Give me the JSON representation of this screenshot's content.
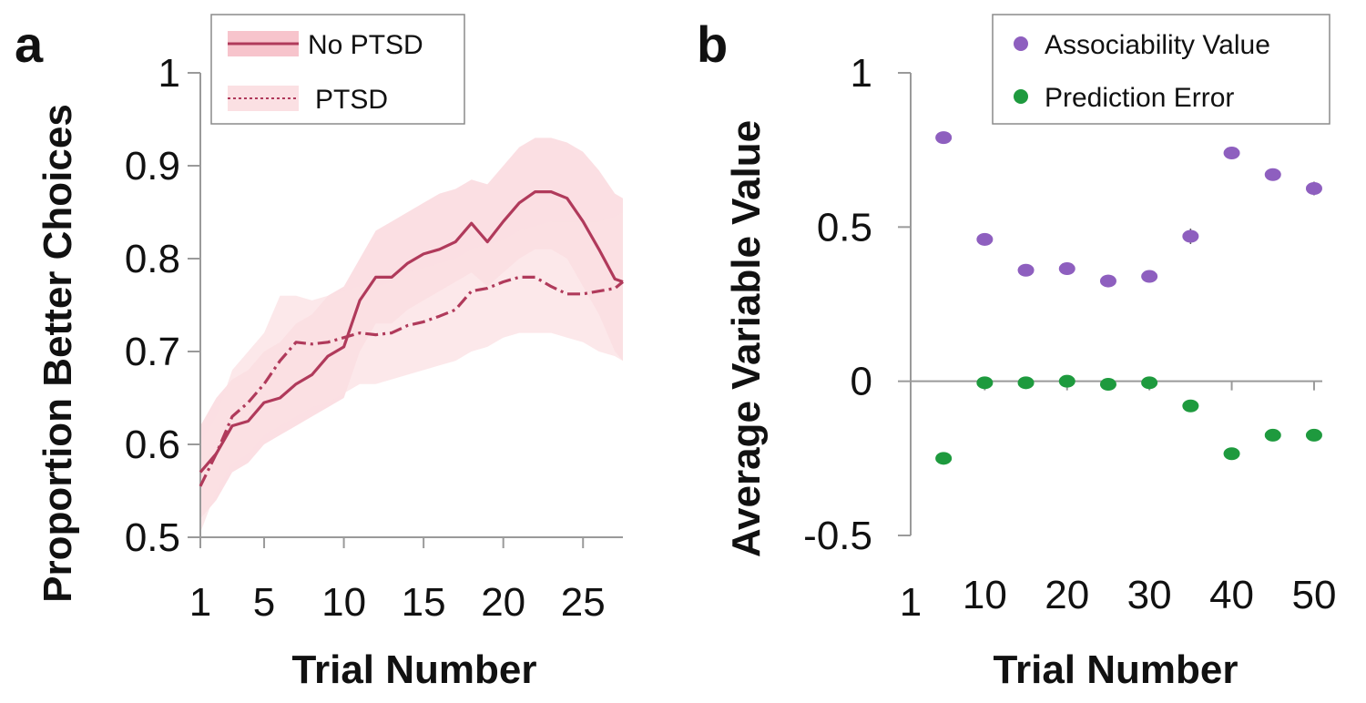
{
  "colors": {
    "line": "#b03a5b",
    "band_nopsd": "#f7c4cc",
    "band_ptsd": "#fbe0e3",
    "assoc": "#8e5fbf",
    "pe": "#1e9a3e",
    "axis": "#9a9a9a"
  },
  "chart_data": [
    {
      "panel": "a",
      "type": "line",
      "xlabel": "Trial Number",
      "ylabel": "Proportion Better Choices",
      "xlim": [
        1,
        27.5
      ],
      "ylim": [
        0.5,
        1.0
      ],
      "xticks": [
        1,
        5,
        10,
        15,
        20,
        25
      ],
      "xtick_labels": [
        "1",
        "5",
        "10",
        "15",
        "20",
        "25"
      ],
      "yticks": [
        0.5,
        0.6,
        0.7,
        0.8,
        0.9,
        1.0
      ],
      "ytick_labels": [
        "0.5",
        "0.6",
        "0.7",
        "0.8",
        "0.9",
        "1"
      ],
      "legend": {
        "position": "top-left",
        "entries": [
          "No PTSD",
          "PTSD"
        ]
      },
      "series": [
        {
          "name": "No PTSD",
          "style": "solid",
          "x": [
            1,
            2,
            3,
            4,
            5,
            6,
            7,
            8,
            9,
            10,
            11,
            12,
            13,
            14,
            15,
            16,
            17,
            18,
            19,
            20,
            21,
            22,
            23,
            24,
            25,
            26,
            27,
            28
          ],
          "values": [
            0.57,
            0.59,
            0.62,
            0.625,
            0.645,
            0.65,
            0.665,
            0.675,
            0.695,
            0.705,
            0.755,
            0.78,
            0.78,
            0.795,
            0.805,
            0.81,
            0.818,
            0.838,
            0.818,
            0.84,
            0.86,
            0.872,
            0.872,
            0.865,
            0.84,
            0.81,
            0.778,
            0.775
          ],
          "upper": [
            0.62,
            0.65,
            0.67,
            0.68,
            0.7,
            0.71,
            0.73,
            0.74,
            0.76,
            0.77,
            0.8,
            0.83,
            0.84,
            0.85,
            0.86,
            0.87,
            0.875,
            0.885,
            0.88,
            0.9,
            0.92,
            0.93,
            0.93,
            0.925,
            0.915,
            0.895,
            0.87,
            0.865
          ],
          "lower": [
            0.52,
            0.54,
            0.57,
            0.58,
            0.6,
            0.61,
            0.62,
            0.63,
            0.64,
            0.65,
            0.7,
            0.73,
            0.73,
            0.745,
            0.755,
            0.765,
            0.775,
            0.785,
            0.77,
            0.785,
            0.8,
            0.81,
            0.81,
            0.8,
            0.77,
            0.74,
            0.7,
            0.69
          ]
        },
        {
          "name": "PTSD",
          "style": "dashed",
          "x": [
            1,
            2,
            3,
            4,
            5,
            6,
            7,
            8,
            9,
            10,
            11,
            12,
            13,
            14,
            15,
            16,
            17,
            18,
            19,
            20,
            21,
            22,
            23,
            24,
            25,
            26,
            27,
            28
          ],
          "values": [
            0.555,
            0.59,
            0.63,
            0.645,
            0.665,
            0.69,
            0.71,
            0.708,
            0.71,
            0.715,
            0.72,
            0.718,
            0.72,
            0.728,
            0.732,
            0.738,
            0.745,
            0.765,
            0.768,
            0.775,
            0.78,
            0.78,
            0.77,
            0.762,
            0.762,
            0.765,
            0.768,
            0.775
          ],
          "upper": [
            0.6,
            0.63,
            0.68,
            0.7,
            0.72,
            0.76,
            0.76,
            0.755,
            0.76,
            0.765,
            0.77,
            0.77,
            0.775,
            0.785,
            0.79,
            0.795,
            0.8,
            0.81,
            0.815,
            0.82,
            0.83,
            0.835,
            0.84,
            0.84,
            0.84,
            0.84,
            0.845,
            0.85
          ],
          "lower": [
            0.505,
            0.55,
            0.58,
            0.59,
            0.61,
            0.62,
            0.63,
            0.64,
            0.645,
            0.655,
            0.665,
            0.665,
            0.67,
            0.675,
            0.68,
            0.685,
            0.69,
            0.7,
            0.705,
            0.715,
            0.72,
            0.72,
            0.72,
            0.715,
            0.71,
            0.7,
            0.695,
            0.69
          ]
        }
      ]
    },
    {
      "panel": "b",
      "type": "scatter",
      "xlabel": "Trial Number",
      "ylabel": "Average Variable Value",
      "xlim": [
        1,
        51
      ],
      "ylim": [
        -0.5,
        1.0
      ],
      "xticks": [
        1,
        10,
        20,
        30,
        40,
        50
      ],
      "xtick_labels": [
        "1",
        "10",
        "20",
        "30",
        "40",
        "50"
      ],
      "yticks": [
        -0.5,
        0,
        0.5,
        1
      ],
      "ytick_labels": [
        "-0.5",
        "0",
        "0.5",
        "1"
      ],
      "legend": {
        "position": "top-right",
        "entries": [
          "Associability Value",
          "Prediction Error"
        ]
      },
      "series": [
        {
          "name": "Associability Value",
          "x": [
            5,
            10,
            15,
            20,
            25,
            30,
            35,
            40,
            45,
            50
          ],
          "values": [
            0.79,
            0.46,
            0.36,
            0.365,
            0.325,
            0.34,
            0.47,
            0.74,
            0.67,
            0.625
          ],
          "errors": [
            0.01,
            0.02,
            0.015,
            0.02,
            0.02,
            0.015,
            0.025,
            0.012,
            0.02,
            0.022
          ]
        },
        {
          "name": "Prediction Error",
          "x": [
            5,
            10,
            15,
            20,
            25,
            30,
            35,
            40,
            45,
            50
          ],
          "values": [
            -0.25,
            -0.005,
            -0.005,
            0.0,
            -0.01,
            -0.005,
            -0.08,
            -0.235,
            -0.175,
            -0.175
          ],
          "errors": [
            0.012,
            0.01,
            0.008,
            0.012,
            0.01,
            0.008,
            0.012,
            0.012,
            0.01,
            0.01
          ]
        }
      ]
    }
  ]
}
